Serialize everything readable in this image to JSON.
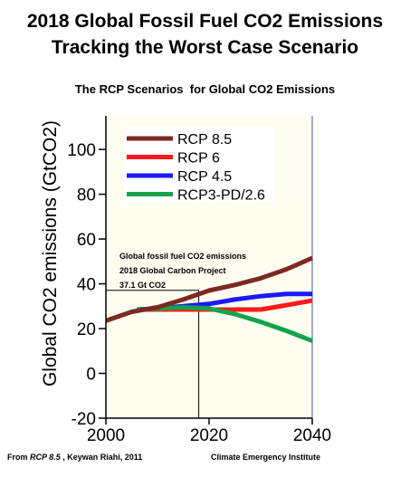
{
  "header": {
    "title_line1": "2018 Global Fossil Fuel CO2 Emissions",
    "title_line2": "Tracking the Worst Case Scenario",
    "subtitle": "The RCP Scenarios  for Global CO2 Emissions"
  },
  "footer": {
    "source_prefix": "From ",
    "source_title": "RCP 8.5",
    "source_rest": " , Keywan Riahi, 2011",
    "credit": "Climate Emergency Institute"
  },
  "chart_data": {
    "type": "line",
    "title": "The RCP Scenarios  for Global CO2 Emissions",
    "xlabel": "",
    "ylabel": "Global CO2 emissions (GtCO2)",
    "xlim": [
      2000,
      2040
    ],
    "ylim": [
      -20,
      115
    ],
    "x_ticks": [
      2000,
      2020,
      2040
    ],
    "y_ticks": [
      -20,
      0,
      20,
      40,
      60,
      80,
      100
    ],
    "grid": false,
    "legend_position": "top-right",
    "series": [
      {
        "name": "RCP 8.5",
        "color": "#7b2a22",
        "points": [
          [
            2000,
            23.5
          ],
          [
            2005,
            27.5
          ],
          [
            2010,
            29.5
          ],
          [
            2015,
            33
          ],
          [
            2020,
            37
          ],
          [
            2025,
            39.5
          ],
          [
            2030,
            42.5
          ],
          [
            2035,
            46.5
          ],
          [
            2040,
            51.5
          ]
        ]
      },
      {
        "name": "RCP 6",
        "color": "#ff1a1a",
        "points": [
          [
            2006,
            28.5
          ],
          [
            2010,
            28.5
          ],
          [
            2020,
            28.5
          ],
          [
            2030,
            28.5
          ],
          [
            2035,
            30.5
          ],
          [
            2040,
            32.5
          ]
        ]
      },
      {
        "name": "RCP 4.5",
        "color": "#1a1aff",
        "points": [
          [
            2006,
            28.5
          ],
          [
            2010,
            29
          ],
          [
            2015,
            30
          ],
          [
            2020,
            31
          ],
          [
            2025,
            33
          ],
          [
            2030,
            34.5
          ],
          [
            2035,
            35.5
          ],
          [
            2040,
            35.5
          ]
        ]
      },
      {
        "name": "RCP3-PD/2.6",
        "color": "#13a34a",
        "points": [
          [
            2006,
            28.5
          ],
          [
            2015,
            29.5
          ],
          [
            2020,
            29
          ],
          [
            2025,
            26.5
          ],
          [
            2030,
            23
          ],
          [
            2035,
            19
          ],
          [
            2040,
            14.5
          ]
        ]
      }
    ],
    "annotation": {
      "lines": [
        "Global fossil fuel CO2 emissions",
        "2018 Global Carbon Project",
        "37.1 Gt CO2"
      ],
      "x": 2018,
      "y": 37.1
    },
    "colors": {
      "plot_background": "#fffdf0",
      "axis_right_line": "#3355cc"
    }
  }
}
